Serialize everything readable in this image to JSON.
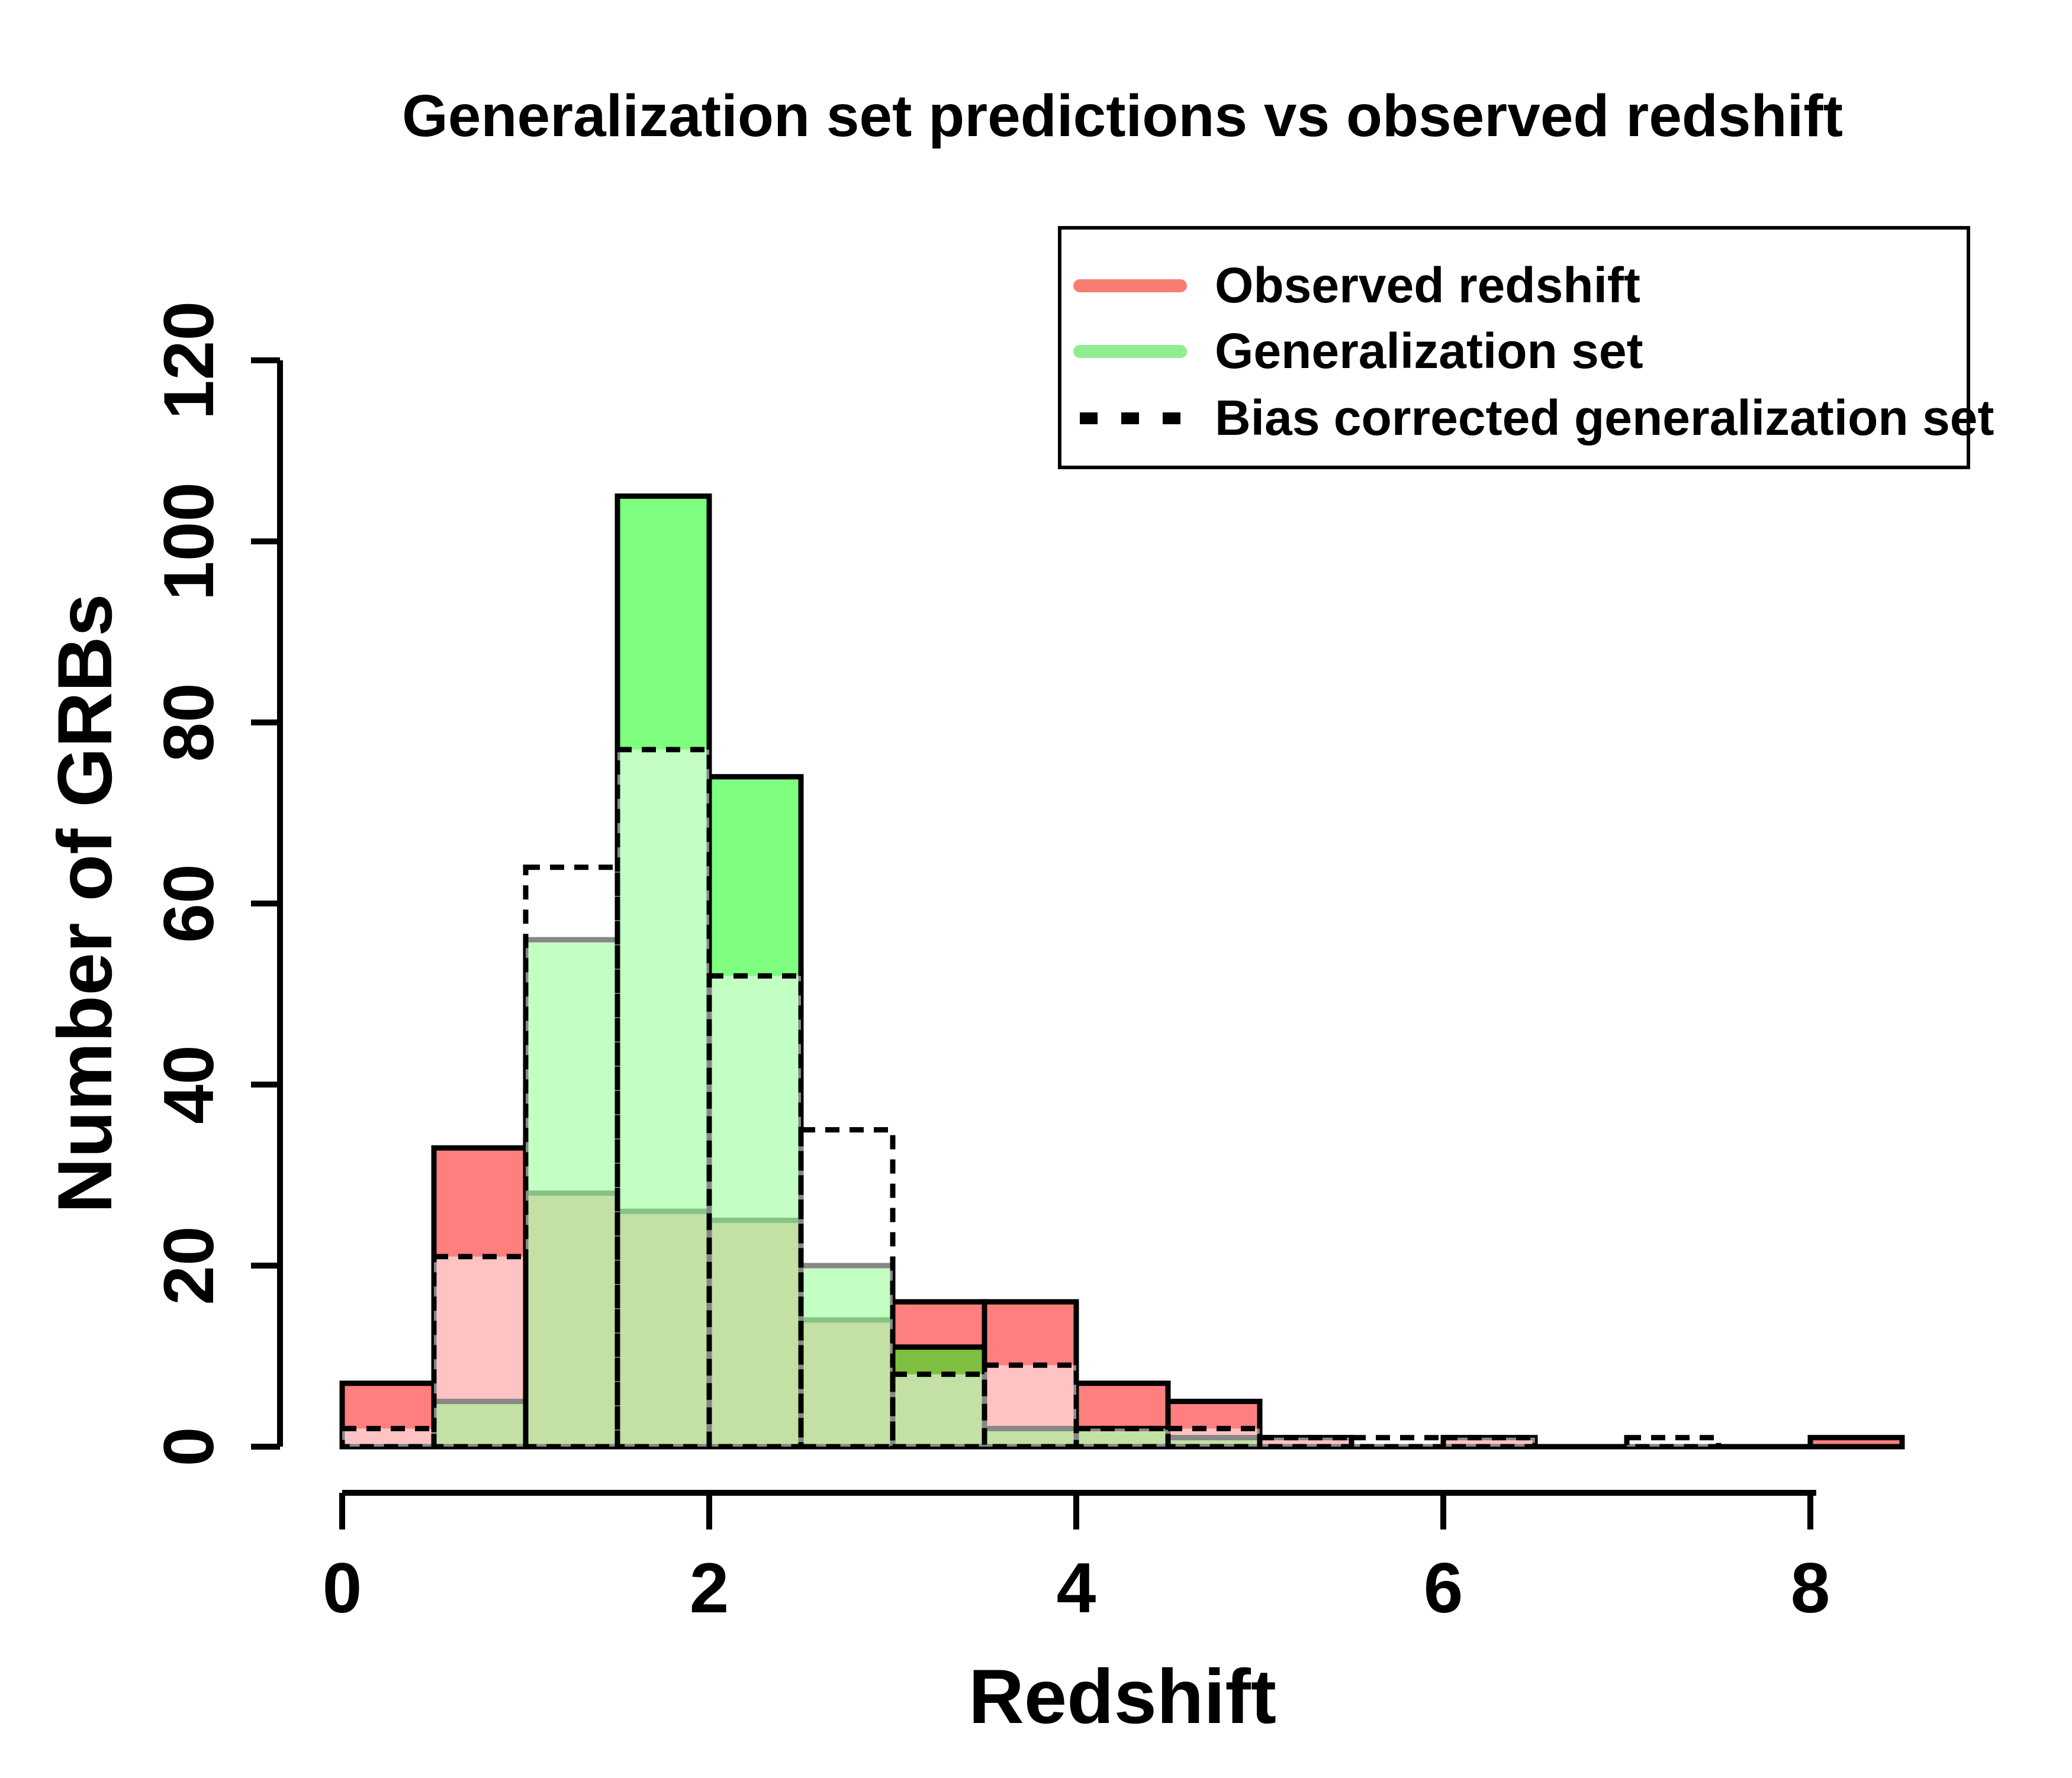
{
  "title": "Generalization set predictions vs observed redshift",
  "x_axis": {
    "label": "Redshift",
    "ticks": [
      0,
      2,
      4,
      6,
      8
    ],
    "range": [
      0,
      8.5
    ]
  },
  "y_axis": {
    "label": "Number of GRBs",
    "ticks": [
      0,
      20,
      40,
      60,
      80,
      100,
      120
    ],
    "range": [
      0,
      120
    ]
  },
  "legend": {
    "items": [
      {
        "label": "Observed redshift",
        "swatch": "line",
        "color": "#F87D71"
      },
      {
        "label": "Generalization set",
        "swatch": "line",
        "color": "#90EE90"
      },
      {
        "label": "Bias corrected generalization set",
        "swatch": "dashed-line",
        "color": "#000000"
      }
    ]
  },
  "colors": {
    "observed_fill": "rgba(255,0,0,0.5)",
    "generalization_fill": "rgba(0,255,0,0.5)",
    "bias_fill": "rgba(255,255,255,0.53)",
    "outline": "#000000",
    "background": "#FFFFFF"
  },
  "chart_data": {
    "type": "bar",
    "subtype": "overlaid-histograms",
    "title": "Generalization set predictions vs observed redshift",
    "xlabel": "Redshift",
    "ylabel": "Number of GRBs",
    "xlim": [
      0,
      8.5
    ],
    "ylim": [
      0,
      120
    ],
    "x_ticks": [
      0,
      2,
      4,
      6,
      8
    ],
    "y_ticks": [
      0,
      20,
      40,
      60,
      80,
      100,
      120
    ],
    "grid": false,
    "legend_position": "top-right",
    "bin_width": 0.5,
    "bin_edges": [
      0,
      0.5,
      1,
      1.5,
      2,
      2.5,
      3,
      3.5,
      4,
      4.5,
      5,
      5.5,
      6,
      6.5,
      7,
      7.5,
      8,
      8.5
    ],
    "series": [
      {
        "name": "Observed redshift",
        "style": "filled",
        "values": [
          7,
          33,
          28,
          26,
          25,
          14,
          16,
          16,
          7,
          5,
          1,
          0,
          1,
          0,
          0,
          0,
          1
        ]
      },
      {
        "name": "Generalization set",
        "style": "filled",
        "values": [
          0,
          5,
          56,
          105,
          74,
          20,
          11,
          2,
          2,
          1,
          0,
          0,
          0,
          0,
          0,
          0,
          0
        ]
      },
      {
        "name": "Bias corrected generalization set",
        "style": "dashed-outline-white-fill",
        "values": [
          2,
          21,
          64,
          77,
          52,
          35,
          8,
          9,
          2,
          2,
          1,
          1,
          1,
          0,
          1,
          0,
          0
        ]
      }
    ]
  }
}
